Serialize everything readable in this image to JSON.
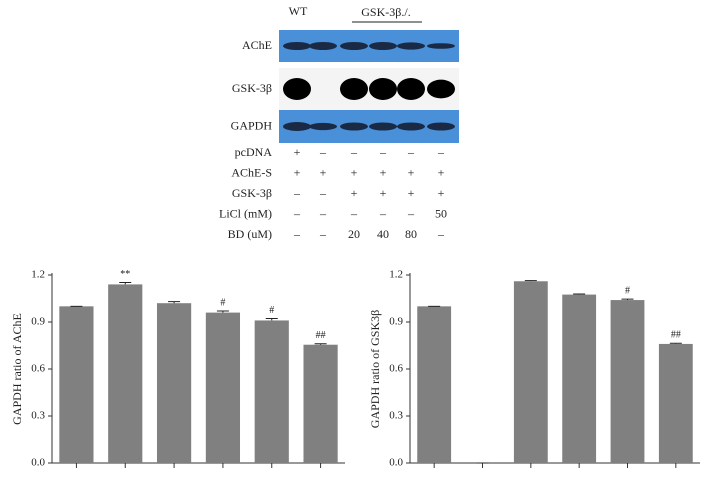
{
  "blot": {
    "wt": "WT",
    "group": "GSK-3β./.",
    "bands": [
      "AChE",
      "GSK-3β",
      "GAPDH"
    ],
    "conditions": [
      {
        "label": "pcDNA",
        "marks": [
          "+",
          "–",
          "–",
          "–",
          "–",
          "–"
        ]
      },
      {
        "label": "AChE-S",
        "marks": [
          "+",
          "+",
          "+",
          "+",
          "+",
          "+"
        ]
      },
      {
        "label": "GSK-3β",
        "marks": [
          "–",
          "–",
          "+",
          "+",
          "+",
          "+"
        ]
      },
      {
        "label": "LiCl (mM)",
        "marks": [
          "–",
          "–",
          "–",
          "–",
          "–",
          "50"
        ]
      },
      {
        "label": "BD (uM)",
        "marks": [
          "–",
          "–",
          "20",
          "40",
          "80",
          "–"
        ]
      }
    ]
  },
  "chart_data": [
    {
      "type": "bar",
      "y_label": "GAPDH ratio of AChE",
      "color": "#808080",
      "categories": [
        null,
        null,
        null,
        null,
        null,
        null
      ],
      "values": [
        1.0,
        1.14,
        1.02,
        0.96,
        0.91,
        0.755
      ],
      "errors": [
        0,
        0.012,
        0.01,
        0.01,
        0.012,
        0.006
      ],
      "annotations": [
        null,
        "**",
        null,
        "#",
        "#",
        "##"
      ],
      "ylim": [
        0,
        1.2
      ],
      "yticks": [
        {
          "value": 0,
          "label": "0.0"
        },
        0.3,
        0.6,
        0.9,
        1.2
      ]
    },
    {
      "type": "bar",
      "y_label": "GAPDH ratio of GSK3β",
      "color": "#808080",
      "categories": [
        null,
        null,
        null,
        null,
        null,
        null
      ],
      "values": [
        1.0,
        0,
        1.16,
        1.075,
        1.04,
        0.76
      ],
      "errors": [
        0,
        0,
        0.004,
        0.004,
        0.006,
        0.004
      ],
      "annotations": [
        null,
        null,
        null,
        null,
        "#",
        "##"
      ],
      "ylim": [
        0,
        1.2
      ],
      "yticks": [
        {
          "value": 0,
          "label": "0.0"
        },
        0.3,
        0.6,
        0.9,
        1.2
      ]
    }
  ]
}
